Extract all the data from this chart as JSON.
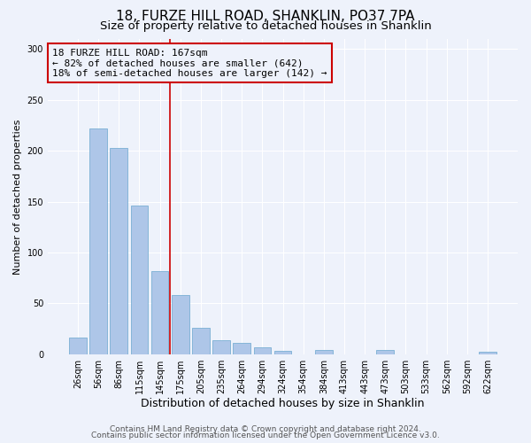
{
  "title": "18, FURZE HILL ROAD, SHANKLIN, PO37 7PA",
  "subtitle": "Size of property relative to detached houses in Shanklin",
  "xlabel": "Distribution of detached houses by size in Shanklin",
  "ylabel": "Number of detached properties",
  "bar_labels": [
    "26sqm",
    "56sqm",
    "86sqm",
    "115sqm",
    "145sqm",
    "175sqm",
    "205sqm",
    "235sqm",
    "264sqm",
    "294sqm",
    "324sqm",
    "354sqm",
    "384sqm",
    "413sqm",
    "443sqm",
    "473sqm",
    "503sqm",
    "533sqm",
    "562sqm",
    "592sqm",
    "622sqm"
  ],
  "bar_values": [
    16,
    222,
    203,
    146,
    82,
    58,
    26,
    14,
    11,
    7,
    3,
    0,
    4,
    0,
    0,
    4,
    0,
    0,
    0,
    0,
    2
  ],
  "bar_color": "#aec6e8",
  "bar_edgecolor": "#7aafd4",
  "vline_color": "#cc0000",
  "annotation_text": "18 FURZE HILL ROAD: 167sqm\n← 82% of detached houses are smaller (642)\n18% of semi-detached houses are larger (142) →",
  "annotation_box_edgecolor": "#cc0000",
  "ylim": [
    0,
    310
  ],
  "yticks": [
    0,
    50,
    100,
    150,
    200,
    250,
    300
  ],
  "footer1": "Contains HM Land Registry data © Crown copyright and database right 2024.",
  "footer2": "Contains public sector information licensed under the Open Government Licence v3.0.",
  "background_color": "#eef2fb",
  "grid_color": "#ffffff",
  "title_fontsize": 11,
  "subtitle_fontsize": 9.5,
  "xlabel_fontsize": 9,
  "ylabel_fontsize": 8,
  "tick_fontsize": 7,
  "annotation_fontsize": 8,
  "footer_fontsize": 6.5
}
